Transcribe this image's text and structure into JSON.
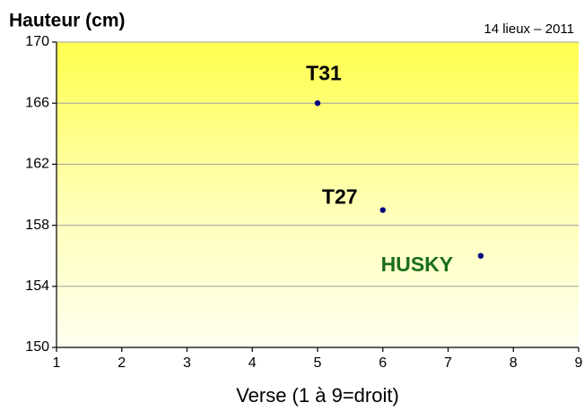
{
  "chart_data": {
    "type": "scatter",
    "title": "Hauteur (cm)",
    "subtitle": "14 lieux – 2011",
    "x_label": "Verse (1 à 9=droit)",
    "x": [
      5,
      6,
      7.5
    ],
    "values": [
      166,
      159,
      156
    ],
    "point_labels": [
      "T31",
      "T27",
      "HUSKY"
    ],
    "label_colors": [
      "#000000",
      "#000000",
      "#1a6e1a"
    ],
    "color": "#000080",
    "xlim": [
      1,
      9
    ],
    "xticks": [
      1,
      2,
      3,
      4,
      5,
      6,
      7,
      8,
      9
    ],
    "ylim": [
      150,
      170
    ],
    "yticks": [
      150,
      154,
      158,
      162,
      166,
      170
    ],
    "grid": true
  }
}
